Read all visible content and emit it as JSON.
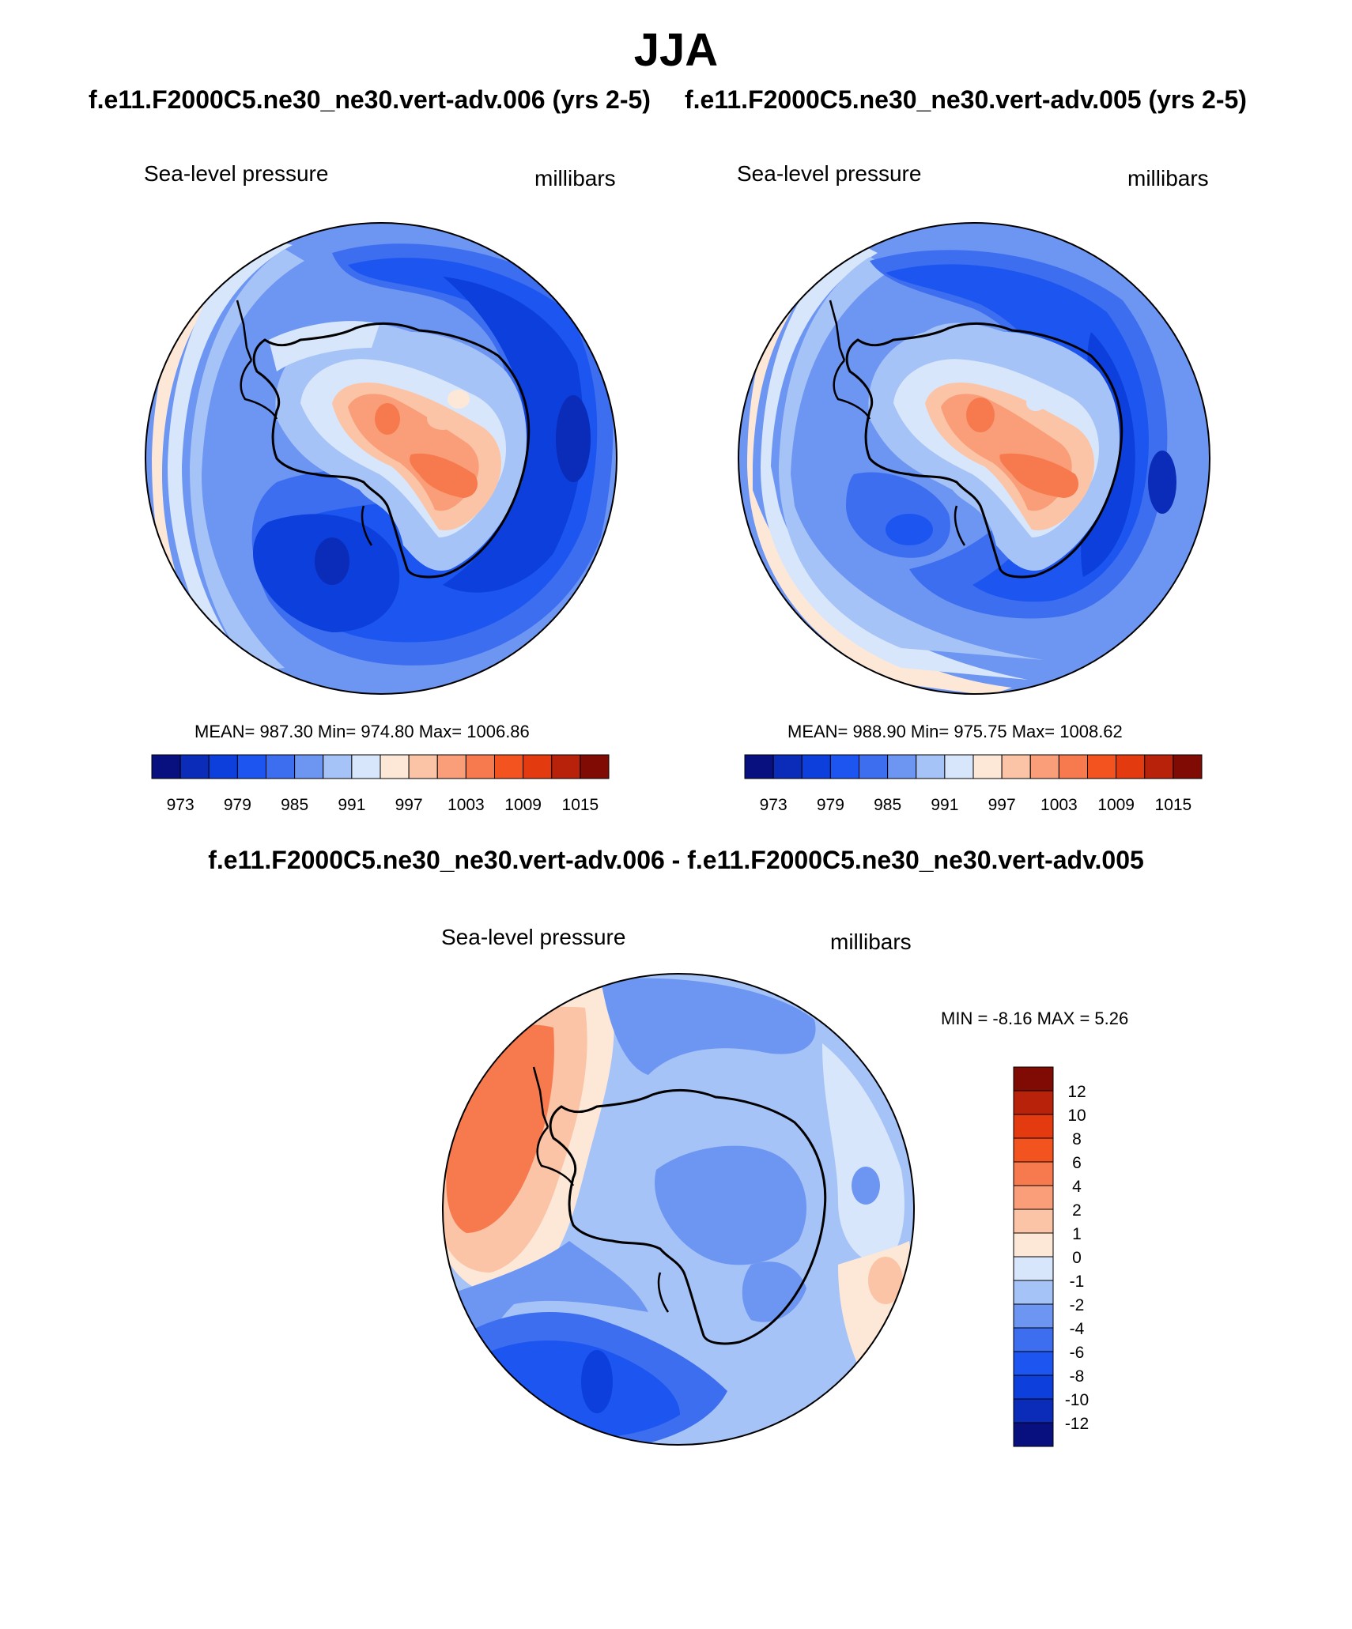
{
  "figure": {
    "title": "JJA",
    "left_case_title": "f.e11.F2000C5.ne30_ne30.vert-adv.006 (yrs 2-5)",
    "right_case_title": "f.e11.F2000C5.ne30_ne30.vert-adv.005 (yrs 2-5)",
    "diff_title": "f.e11.F2000C5.ne30_ne30.vert-adv.006 - f.e11.F2000C5.ne30_ne30.vert-adv.005"
  },
  "colors": {
    "abs_levels": [
      "#08107f",
      "#0a2cb8",
      "#0c3fdc",
      "#1c55f0",
      "#3d6ef0",
      "#6d95f2",
      "#a6c3f7",
      "#d8e6fb",
      "#fde8d8",
      "#fbc4a6",
      "#f99e78",
      "#f77a4e",
      "#f2531f",
      "#e33a10",
      "#b8220a",
      "#7f0b04"
    ],
    "diff_levels": [
      "#7f0b04",
      "#b8220a",
      "#e33a10",
      "#f2531f",
      "#f77a4e",
      "#f99e78",
      "#fbc4a6",
      "#fde8d8",
      "#d8e6fb",
      "#a6c3f7",
      "#6d95f2",
      "#3d6ef0",
      "#1c55f0",
      "#0c3fdc",
      "#0a2cb8",
      "#08107f"
    ]
  },
  "chart_data": [
    {
      "type": "heatmap",
      "panel": "left",
      "title": "Sea-level pressure",
      "units": "millibars",
      "projection": "south polar stereographic",
      "stats_text": "MEAN= 987.30  Min= 974.80  Max= 1006.86",
      "mean": 987.3,
      "min": 974.8,
      "max": 1006.86,
      "colorbar_ticks": [
        "973",
        "979",
        "985",
        "991",
        "997",
        "1003",
        "1009",
        "1015"
      ]
    },
    {
      "type": "heatmap",
      "panel": "right",
      "title": "Sea-level pressure",
      "units": "millibars",
      "projection": "south polar stereographic",
      "stats_text": "MEAN= 988.90  Min= 975.75  Max= 1008.62",
      "mean": 988.9,
      "min": 975.75,
      "max": 1008.62,
      "colorbar_ticks": [
        "973",
        "979",
        "985",
        "991",
        "997",
        "1003",
        "1009",
        "1015"
      ]
    },
    {
      "type": "heatmap",
      "panel": "difference",
      "title": "Sea-level pressure",
      "units": "millibars",
      "projection": "south polar stereographic",
      "stats_text": "MIN =  -8.16 MAX =   5.26",
      "min": -8.16,
      "max": 5.26,
      "colorbar_ticks": [
        "12",
        "10",
        "8",
        "6",
        "4",
        "2",
        "1",
        "0",
        "-1",
        "-2",
        "-4",
        "-6",
        "-8",
        "-10",
        "-12"
      ]
    }
  ]
}
